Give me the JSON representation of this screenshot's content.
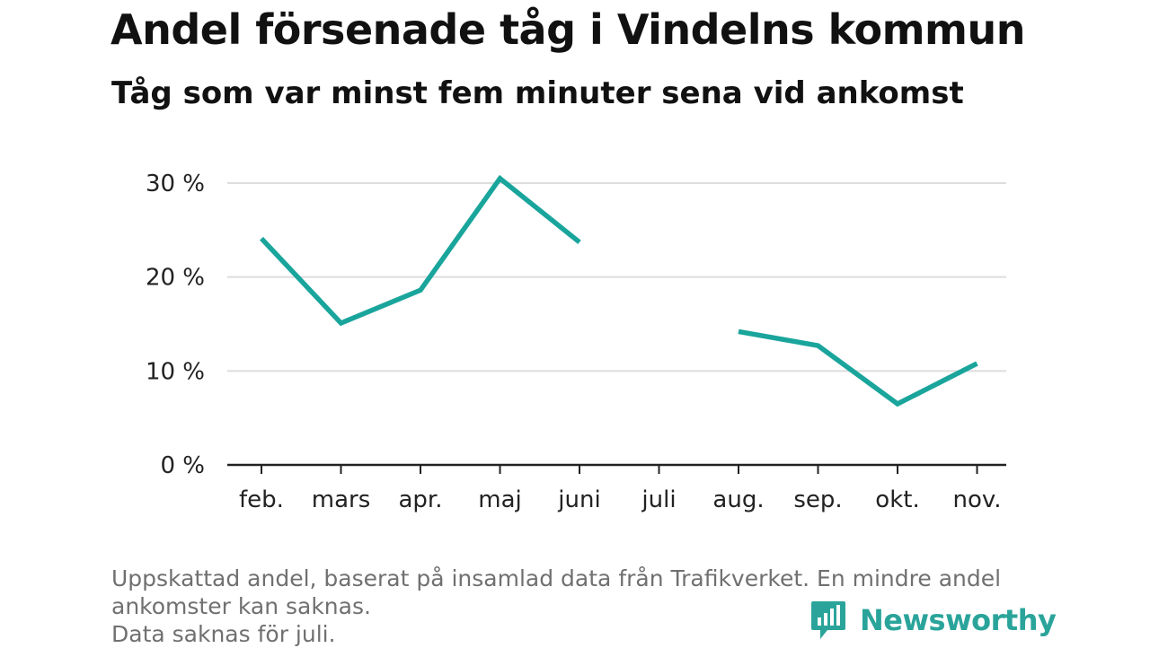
{
  "header": {
    "title": "Andel försenade tåg i Vindelns kommun",
    "subtitle": "Tåg som var minst fem minuter sena vid ankomst"
  },
  "chart_data": {
    "type": "line",
    "title": "Andel försenade tåg i Vindelns kommun",
    "subtitle": "Tåg som var minst fem minuter sena vid ankomst",
    "categories": [
      "feb.",
      "mars",
      "apr.",
      "maj",
      "juni",
      "juli",
      "aug.",
      "sep.",
      "okt.",
      "nov."
    ],
    "series": [
      {
        "values": [
          24.1,
          15.1,
          18.6,
          30.5,
          23.7,
          null,
          14.2,
          12.7,
          6.5,
          10.8
        ]
      }
    ],
    "y_ticks": [
      0,
      10,
      20,
      30
    ],
    "y_tick_labels": [
      "0 %",
      "10 %",
      "20 %",
      "30 %"
    ],
    "ylim": [
      0,
      30
    ],
    "grid": true,
    "colors": {
      "line": "#1aa59c",
      "grid": "#dddddd",
      "axis": "#222222"
    }
  },
  "footer": {
    "note_lines": [
      "Uppskattad andel, baserat på insamlad data från Trafikverket. En mindre andel",
      "ankomster kan saknas.",
      "Data saknas för juli."
    ],
    "brand_name": "Newsworthy",
    "brand_icon": "newsworthy-logo-icon",
    "brand_color": "#2aa49a"
  }
}
